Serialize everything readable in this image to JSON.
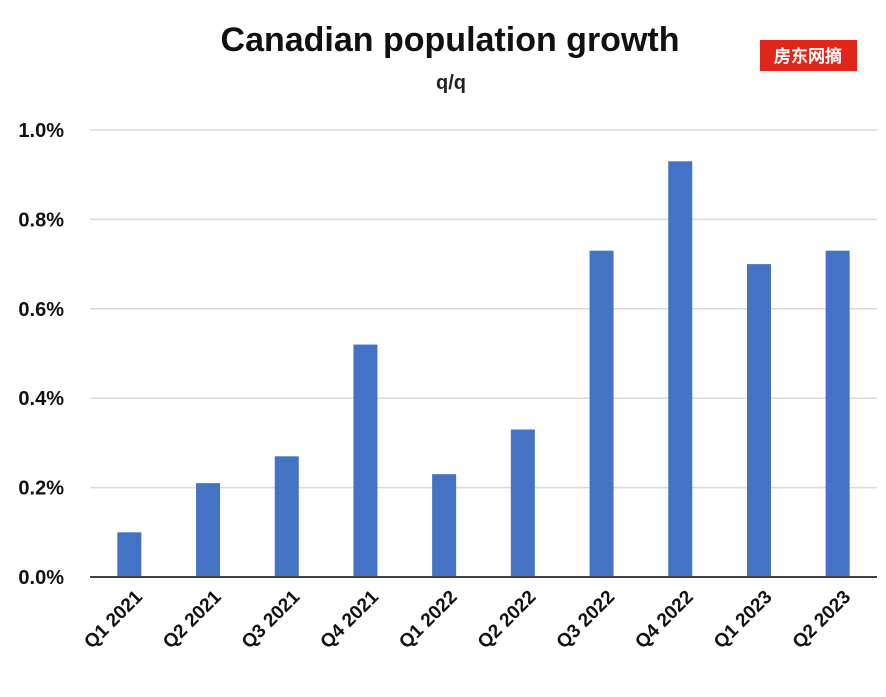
{
  "watermark": {
    "text": "房东网摘",
    "bg": "#e1251b"
  },
  "chart_data": {
    "type": "bar",
    "title": "Canadian population growth",
    "subtitle": "q/q",
    "xlabel": "",
    "ylabel": "",
    "categories": [
      "Q1 2021",
      "Q2 2021",
      "Q3 2021",
      "Q4 2021",
      "Q1 2022",
      "Q2 2022",
      "Q3 2022",
      "Q4 2022",
      "Q1 2023",
      "Q2 2023"
    ],
    "values": [
      0.1,
      0.21,
      0.27,
      0.52,
      0.23,
      0.33,
      0.73,
      0.93,
      0.7,
      0.73
    ],
    "y_ticks": [
      "0.0%",
      "0.2%",
      "0.4%",
      "0.6%",
      "0.8%",
      "1.0%"
    ],
    "ylim": [
      0,
      1.0
    ],
    "grid": true,
    "legend": "none",
    "bar_color": "#4472c4",
    "grid_color": "#d9d9d9",
    "axis_color": "#404040"
  }
}
